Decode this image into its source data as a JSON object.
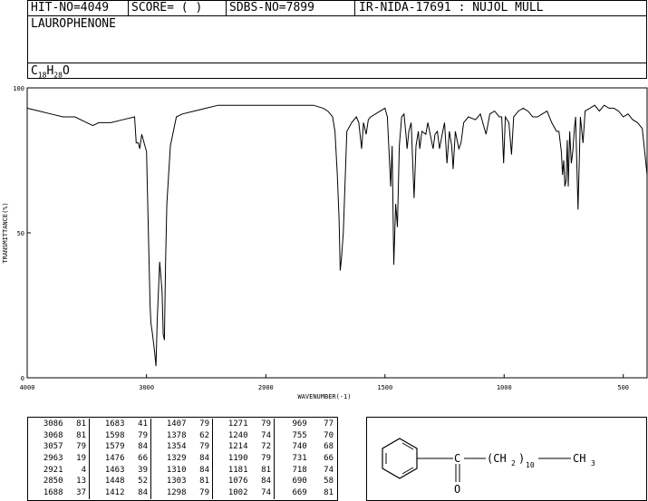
{
  "header": {
    "hit_no": "HIT-NO=4049",
    "score": "SCORE=  (   )",
    "sdbs_no": "SDBS-NO=7899",
    "ir_id": "IR-NIDA-17691 : NUJOL MULL",
    "compound": "LAUROPHENONE",
    "formula_c": "C",
    "formula_c_sub": "18",
    "formula_h": "H",
    "formula_h_sub": "28",
    "formula_o": "O"
  },
  "chart_data": {
    "type": "line",
    "title": "",
    "xlabel": "WAVENUMBER(-1)",
    "ylabel": "TRANSMITTANCE(%)",
    "xlim": [
      4000,
      400
    ],
    "ylim": [
      0,
      100
    ],
    "x_ticks": [
      4000,
      3000,
      2000,
      1500,
      1000,
      500
    ],
    "y_ticks": [
      0,
      50,
      100
    ],
    "grid": false,
    "x": [
      4000,
      3900,
      3800,
      3700,
      3600,
      3500,
      3450,
      3400,
      3300,
      3200,
      3100,
      3086,
      3068,
      3057,
      3040,
      3000,
      2990,
      2970,
      2963,
      2950,
      2930,
      2921,
      2910,
      2890,
      2870,
      2860,
      2850,
      2840,
      2830,
      2800,
      2750,
      2700,
      2600,
      2500,
      2400,
      2300,
      2200,
      2100,
      2000,
      1900,
      1800,
      1760,
      1740,
      1720,
      1710,
      1700,
      1693,
      1688,
      1683,
      1675,
      1660,
      1640,
      1620,
      1610,
      1598,
      1590,
      1579,
      1570,
      1560,
      1540,
      1520,
      1500,
      1490,
      1476,
      1470,
      1463,
      1455,
      1448,
      1440,
      1430,
      1420,
      1412,
      1407,
      1400,
      1390,
      1378,
      1370,
      1360,
      1354,
      1345,
      1329,
      1320,
      1310,
      1303,
      1298,
      1290,
      1280,
      1271,
      1260,
      1250,
      1240,
      1230,
      1220,
      1214,
      1205,
      1190,
      1181,
      1170,
      1150,
      1120,
      1100,
      1076,
      1060,
      1040,
      1020,
      1010,
      1002,
      995,
      980,
      969,
      960,
      940,
      920,
      900,
      880,
      860,
      840,
      820,
      800,
      780,
      770,
      760,
      755,
      750,
      745,
      740,
      735,
      731,
      725,
      718,
      712,
      705,
      700,
      690,
      680,
      669,
      660,
      640,
      620,
      600,
      580,
      560,
      540,
      520,
      500,
      480,
      460,
      440,
      420,
      400
    ],
    "y": [
      93,
      92,
      91,
      90,
      90,
      88,
      87,
      88,
      88,
      89,
      90,
      81,
      81,
      79,
      84,
      78,
      60,
      25,
      19,
      15,
      8,
      4,
      20,
      40,
      30,
      15,
      13,
      40,
      60,
      80,
      90,
      91,
      92,
      93,
      94,
      94,
      94,
      94,
      94,
      94,
      94,
      93,
      92,
      90,
      85,
      70,
      55,
      37,
      41,
      50,
      85,
      88,
      90,
      88,
      79,
      88,
      84,
      89,
      90,
      91,
      92,
      93,
      90,
      66,
      80,
      39,
      60,
      52,
      80,
      90,
      91,
      84,
      79,
      85,
      88,
      62,
      80,
      85,
      79,
      85,
      84,
      88,
      84,
      81,
      79,
      84,
      85,
      79,
      84,
      88,
      74,
      85,
      80,
      72,
      85,
      79,
      81,
      88,
      90,
      89,
      91,
      84,
      91,
      92,
      90,
      90,
      74,
      90,
      88,
      77,
      90,
      92,
      93,
      92,
      90,
      90,
      91,
      92,
      88,
      85,
      85,
      78,
      70,
      75,
      66,
      68,
      82,
      66,
      85,
      74,
      78,
      86,
      90,
      58,
      90,
      81,
      92,
      93,
      94,
      92,
      94,
      93,
      93,
      92,
      90,
      91,
      89,
      88,
      86,
      70
    ]
  },
  "peak_table": [
    [
      [
        "3086",
        "81"
      ],
      [
        "3068",
        "81"
      ],
      [
        "3057",
        "79"
      ],
      [
        "2963",
        "19"
      ],
      [
        "2921",
        "4"
      ],
      [
        "2850",
        "13"
      ],
      [
        "1688",
        "37"
      ]
    ],
    [
      [
        "1683",
        "41"
      ],
      [
        "1598",
        "79"
      ],
      [
        "1579",
        "84"
      ],
      [
        "1476",
        "66"
      ],
      [
        "1463",
        "39"
      ],
      [
        "1448",
        "52"
      ],
      [
        "1412",
        "84"
      ]
    ],
    [
      [
        "1407",
        "79"
      ],
      [
        "1378",
        "62"
      ],
      [
        "1354",
        "79"
      ],
      [
        "1329",
        "84"
      ],
      [
        "1310",
        "84"
      ],
      [
        "1303",
        "81"
      ],
      [
        "1298",
        "79"
      ]
    ],
    [
      [
        "1271",
        "79"
      ],
      [
        "1240",
        "74"
      ],
      [
        "1214",
        "72"
      ],
      [
        "1190",
        "79"
      ],
      [
        "1181",
        "81"
      ],
      [
        "1076",
        "84"
      ],
      [
        "1002",
        "74"
      ]
    ],
    [
      [
        "969",
        "77"
      ],
      [
        "755",
        "70"
      ],
      [
        "740",
        "68"
      ],
      [
        "731",
        "66"
      ],
      [
        "718",
        "74"
      ],
      [
        "690",
        "58"
      ],
      [
        "669",
        "81"
      ]
    ]
  ],
  "structure": {
    "carbonyl_c": "C",
    "carbonyl_o": "O",
    "chain_left": "(CH",
    "chain_sub2": "2",
    "chain_right": ")",
    "chain_sub10": "10",
    "terminal": "CH",
    "terminal_sub": "3"
  }
}
